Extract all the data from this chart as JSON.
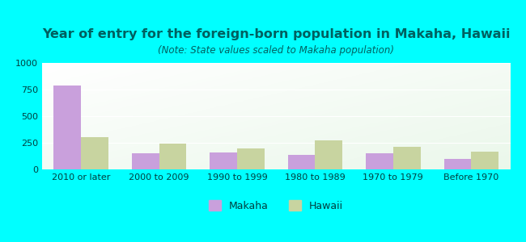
{
  "categories": [
    "2010 or later",
    "2000 to 2009",
    "1990 to 1999",
    "1980 to 1989",
    "1970 to 1979",
    "Before 1970"
  ],
  "makaha_values": [
    790,
    155,
    160,
    135,
    155,
    95
  ],
  "hawaii_values": [
    305,
    245,
    195,
    270,
    215,
    170
  ],
  "makaha_color": "#c9a0dc",
  "hawaii_color": "#c8d4a0",
  "title": "Year of entry for the foreign-born population in Makaha, Hawaii",
  "subtitle": "(Note: State values scaled to Makaha population)",
  "title_fontsize": 11.5,
  "subtitle_fontsize": 8.5,
  "title_color": "#006060",
  "subtitle_color": "#006060",
  "tick_color": "#004040",
  "ylim": [
    0,
    1000
  ],
  "yticks": [
    0,
    250,
    500,
    750,
    1000
  ],
  "background_color": "#00FFFF",
  "bar_width": 0.35,
  "legend_makaha": "Makaha",
  "legend_hawaii": "Hawaii"
}
